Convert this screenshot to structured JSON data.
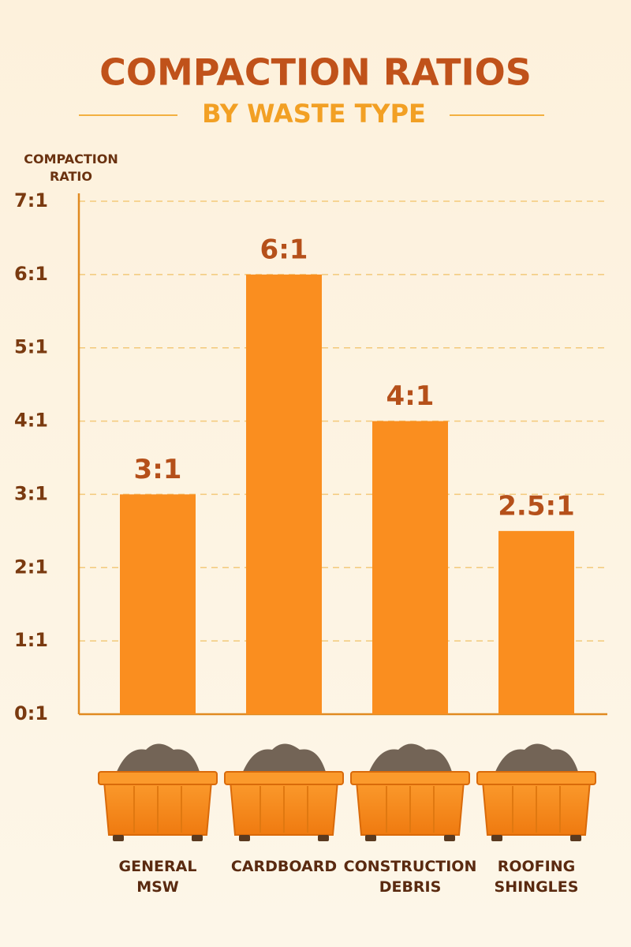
{
  "chart_data": {
    "type": "bar",
    "title": "COMPACTION RATIOS",
    "subtitle": "BY WASTE TYPE",
    "y_axis_label": "COMPACTION RATIO",
    "categories": [
      "GENERAL MSW",
      "CARDBOARD",
      "CONSTRUCTION DEBRIS",
      "ROOFING SHINGLES"
    ],
    "values": [
      3,
      6,
      4,
      2.5
    ],
    "value_labels": [
      "3:1",
      "6:1",
      "4:1",
      "2.5:1"
    ],
    "color": "#fa8e1f",
    "ylim": [
      0,
      7
    ],
    "yticks": [
      {
        "value": 0,
        "label": "0:1"
      },
      {
        "value": 1,
        "label": "1:1"
      },
      {
        "value": 2,
        "label": "2:1"
      },
      {
        "value": 3,
        "label": "3:1"
      },
      {
        "value": 4,
        "label": "4:1"
      },
      {
        "value": 5,
        "label": "5:1"
      },
      {
        "value": 6,
        "label": "6:1"
      },
      {
        "value": 7,
        "label": "7:1"
      }
    ],
    "grid": true
  }
}
